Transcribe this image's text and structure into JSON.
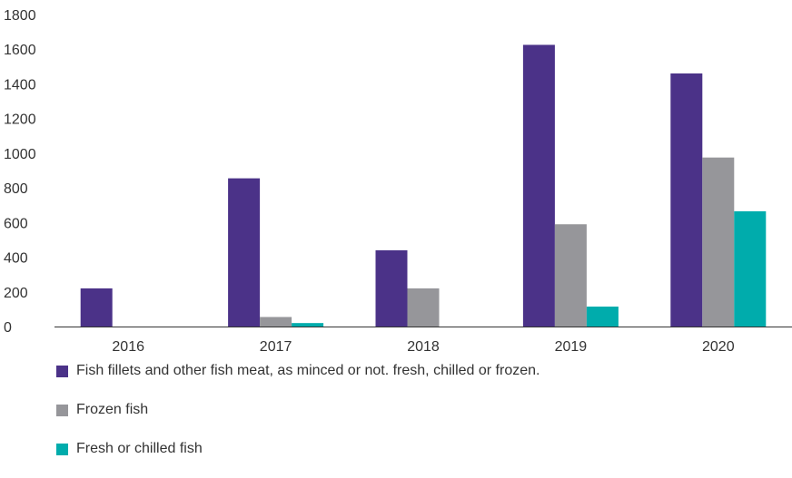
{
  "chart_data": {
    "type": "bar",
    "categories": [
      "2016",
      "2017",
      "2018",
      "2019",
      "2020"
    ],
    "series": [
      {
        "name": "Fish fillets and other fish meat, as minced or not. fresh, chilled or frozen.",
        "color": "#4b3288",
        "values": [
          220,
          855,
          440,
          1625,
          1460
        ]
      },
      {
        "name": "Frozen fish",
        "color": "#96969a",
        "values": [
          0,
          55,
          220,
          590,
          975
        ]
      },
      {
        "name": "Fresh or chilled fish",
        "color": "#00acac",
        "values": [
          0,
          20,
          0,
          115,
          665
        ]
      }
    ],
    "yticks": [
      "0",
      "200",
      "400",
      "600",
      "800",
      "1000",
      "1200",
      "1400",
      "1600",
      "1800"
    ],
    "ylim": [
      0,
      1800
    ],
    "grid": false,
    "legend_position": "bottom"
  }
}
